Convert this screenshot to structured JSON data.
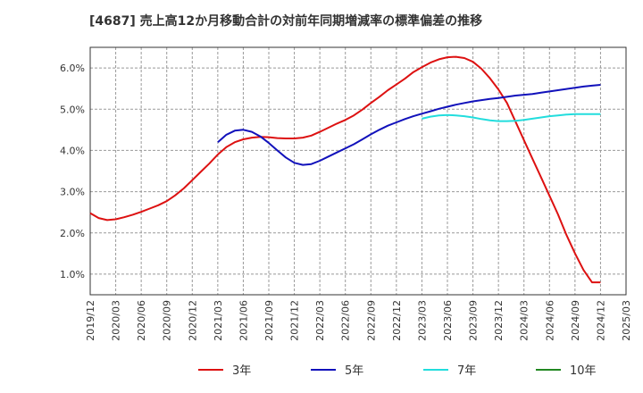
{
  "title": "[4687]  売上高12か月移動合計の対前年同期増減率の標準偏差の推移",
  "chart_data": {
    "type": "line",
    "title": "[4687]  売上高12か月移動合計の対前年同期増減率の標準偏差の推移",
    "xlabel": "",
    "ylabel": "",
    "x_ticks": [
      "2019/12",
      "2020/03",
      "2020/06",
      "2020/09",
      "2020/12",
      "2021/03",
      "2021/06",
      "2021/09",
      "2021/12",
      "2022/03",
      "2022/06",
      "2022/09",
      "2022/12",
      "2023/03",
      "2023/06",
      "2023/09",
      "2023/12",
      "2024/03",
      "2024/06",
      "2024/09",
      "2024/12",
      "2025/03"
    ],
    "y_ticks": [
      1.0,
      2.0,
      3.0,
      4.0,
      5.0,
      6.0
    ],
    "y_tick_labels": [
      "1.0%",
      "2.0%",
      "3.0%",
      "4.0%",
      "5.0%",
      "6.0%"
    ],
    "ylim": [
      0.5,
      6.5
    ],
    "grid": true,
    "legend_position": "bottom",
    "series": [
      {
        "name": "3年",
        "color": "#dd1111",
        "x": [
          "2019/12",
          "2020/01",
          "2020/02",
          "2020/03",
          "2020/04",
          "2020/05",
          "2020/06",
          "2020/07",
          "2020/08",
          "2020/09",
          "2020/10",
          "2020/11",
          "2020/12",
          "2021/01",
          "2021/02",
          "2021/03",
          "2021/04",
          "2021/05",
          "2021/06",
          "2021/07",
          "2021/08",
          "2021/09",
          "2021/10",
          "2021/11",
          "2021/12",
          "2022/01",
          "2022/02",
          "2022/03",
          "2022/04",
          "2022/05",
          "2022/06",
          "2022/07",
          "2022/08",
          "2022/09",
          "2022/10",
          "2022/11",
          "2022/12",
          "2023/01",
          "2023/02",
          "2023/03",
          "2023/04",
          "2023/05",
          "2023/06",
          "2023/07",
          "2023/08",
          "2023/09",
          "2023/10",
          "2023/11",
          "2023/12",
          "2024/01",
          "2024/02",
          "2024/03",
          "2024/04",
          "2024/05",
          "2024/06",
          "2024/07",
          "2024/08",
          "2024/09",
          "2024/10",
          "2024/11",
          "2024/12"
        ],
        "values": [
          2.48,
          2.36,
          2.31,
          2.33,
          2.38,
          2.44,
          2.51,
          2.59,
          2.67,
          2.77,
          2.91,
          3.08,
          3.28,
          3.48,
          3.68,
          3.9,
          4.08,
          4.2,
          4.27,
          4.31,
          4.33,
          4.32,
          4.3,
          4.29,
          4.29,
          4.31,
          4.36,
          4.45,
          4.55,
          4.65,
          4.74,
          4.85,
          4.99,
          5.15,
          5.3,
          5.46,
          5.6,
          5.74,
          5.9,
          6.02,
          6.13,
          6.21,
          6.26,
          6.27,
          6.24,
          6.15,
          5.98,
          5.75,
          5.48,
          5.15,
          4.7,
          4.25,
          3.8,
          3.35,
          2.9,
          2.45,
          1.95,
          1.5,
          1.1,
          0.8,
          0.8
        ]
      },
      {
        "name": "5年",
        "color": "#1111bb",
        "x": [
          "2021/03",
          "2021/04",
          "2021/05",
          "2021/06",
          "2021/07",
          "2021/08",
          "2021/09",
          "2021/10",
          "2021/11",
          "2021/12",
          "2022/01",
          "2022/02",
          "2022/03",
          "2022/04",
          "2022/05",
          "2022/06",
          "2022/07",
          "2022/08",
          "2022/09",
          "2022/10",
          "2022/11",
          "2022/12",
          "2023/01",
          "2023/02",
          "2023/03",
          "2023/04",
          "2023/05",
          "2023/06",
          "2023/07",
          "2023/08",
          "2023/09",
          "2023/10",
          "2023/11",
          "2023/12",
          "2024/01",
          "2024/02",
          "2024/03",
          "2024/04",
          "2024/05",
          "2024/06",
          "2024/07",
          "2024/08",
          "2024/09",
          "2024/10",
          "2024/11",
          "2024/12"
        ],
        "values": [
          4.2,
          4.38,
          4.48,
          4.5,
          4.45,
          4.34,
          4.18,
          4.0,
          3.83,
          3.7,
          3.65,
          3.67,
          3.75,
          3.85,
          3.95,
          4.05,
          4.15,
          4.27,
          4.39,
          4.5,
          4.6,
          4.68,
          4.76,
          4.83,
          4.89,
          4.95,
          5.01,
          5.06,
          5.11,
          5.15,
          5.19,
          5.22,
          5.25,
          5.27,
          5.3,
          5.33,
          5.35,
          5.37,
          5.4,
          5.43,
          5.46,
          5.49,
          5.52,
          5.55,
          5.57,
          5.59
        ]
      },
      {
        "name": "7年",
        "color": "#22dddd",
        "x": [
          "2023/03",
          "2023/04",
          "2023/05",
          "2023/06",
          "2023/07",
          "2023/08",
          "2023/09",
          "2023/10",
          "2023/11",
          "2023/12",
          "2024/01",
          "2024/02",
          "2024/03",
          "2024/04",
          "2024/05",
          "2024/06",
          "2024/07",
          "2024/08",
          "2024/09",
          "2024/10",
          "2024/11",
          "2024/12"
        ],
        "values": [
          4.77,
          4.82,
          4.85,
          4.86,
          4.85,
          4.83,
          4.8,
          4.76,
          4.73,
          4.71,
          4.71,
          4.72,
          4.74,
          4.77,
          4.8,
          4.83,
          4.85,
          4.87,
          4.88,
          4.88,
          4.88,
          4.88
        ]
      },
      {
        "name": "10年",
        "color": "#228822",
        "x": [],
        "values": []
      }
    ]
  }
}
